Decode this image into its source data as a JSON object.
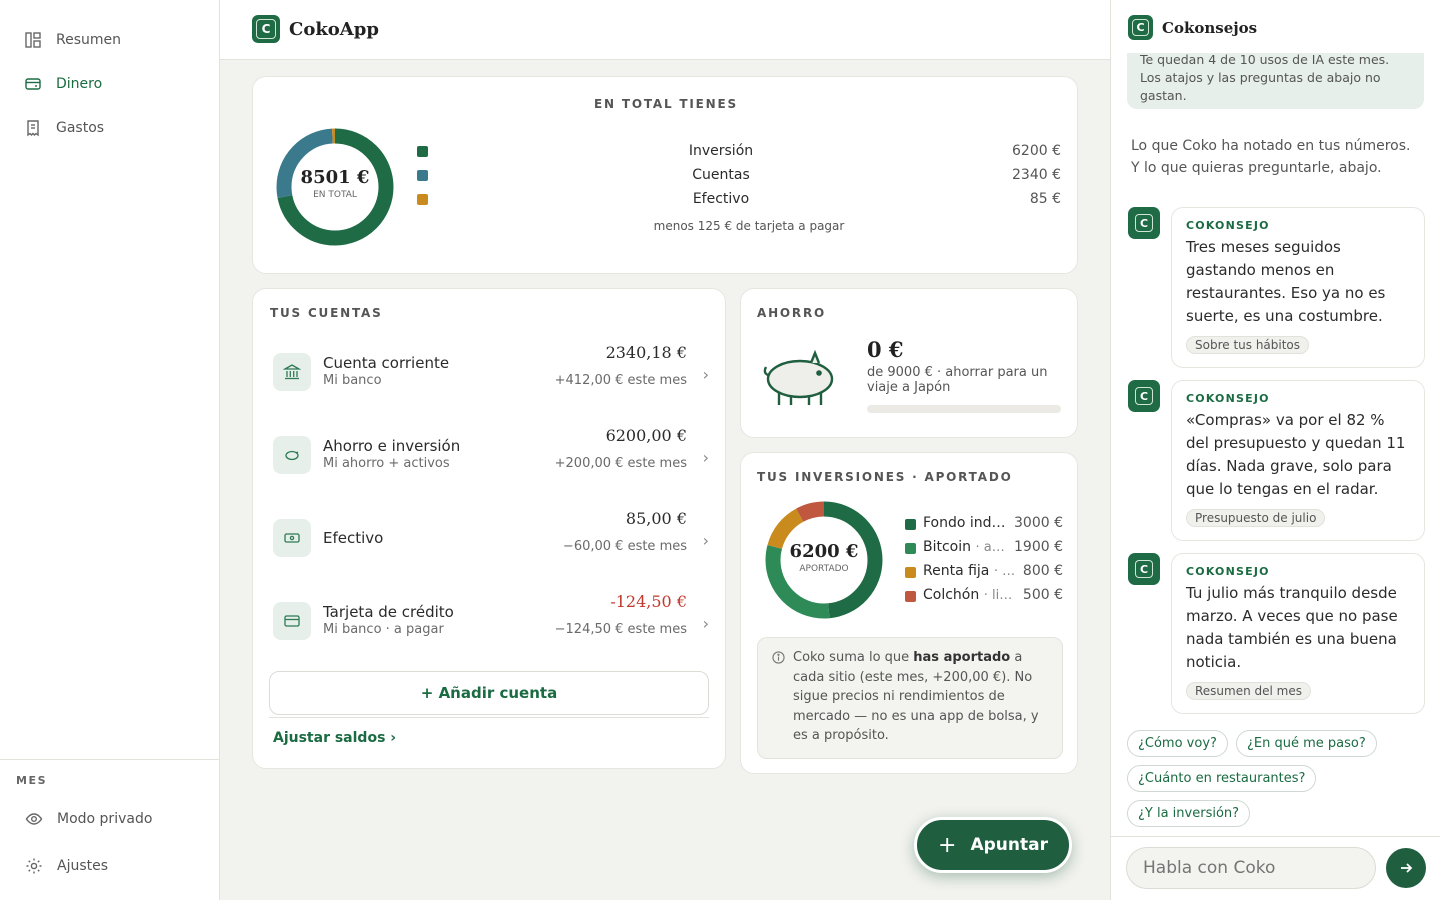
{
  "sidebar": {
    "nav": [
      {
        "label": "Resumen"
      },
      {
        "label": "Dinero"
      },
      {
        "label": "Gastos"
      }
    ],
    "section_label": "MES",
    "bottom": [
      {
        "label": "Modo privado"
      },
      {
        "label": "Ajustes"
      }
    ]
  },
  "header": {
    "app_name": "CokoApp"
  },
  "total": {
    "title": "EN TOTAL TIENES",
    "amount": "8501 €",
    "amount_sub": "EN TOTAL",
    "items": [
      {
        "label": "Inversión",
        "value": "6200 €",
        "color": "#1f6b45"
      },
      {
        "label": "Cuentas",
        "value": "2340 €",
        "color": "#3b7a8c"
      },
      {
        "label": "Efectivo",
        "value": "85 €",
        "color": "#c98b1e"
      }
    ],
    "note": "menos 125 € de tarjeta a pagar"
  },
  "accounts": {
    "title": "TUS CUENTAS",
    "items": [
      {
        "name": "Cuenta corriente",
        "sub": "Mi banco",
        "amount": "2340,18 €",
        "delta": "+412,00 € este mes",
        "icon": "bank-icon",
        "negative": false
      },
      {
        "name": "Ahorro e inversión",
        "sub": "Mi ahorro + activos",
        "amount": "6200,00 €",
        "delta": "+200,00 € este mes",
        "icon": "piggy-icon",
        "negative": false
      },
      {
        "name": "Efectivo",
        "sub": "",
        "amount": "85,00 €",
        "delta": "−60,00 € este mes",
        "icon": "cash-icon",
        "negative": false
      },
      {
        "name": "Tarjeta de crédito",
        "sub": "Mi banco · a pagar",
        "amount": "-124,50 €",
        "delta": "−124,50 € este mes",
        "icon": "card-icon",
        "negative": true
      }
    ],
    "add_label": "+ Añadir cuenta",
    "adjust_label": "Ajustar saldos ›"
  },
  "savings": {
    "title": "AHORRO",
    "amount": "0 €",
    "desc": "de 9000 € · ahorrar para un viaje a Japón",
    "progress": 0
  },
  "investments": {
    "title": "TUS INVERSIONES · APORTADO",
    "amount": "6200 €",
    "amount_sub": "APORTADO",
    "items": [
      {
        "label": "Fondo ind…",
        "value": "3000 €",
        "color": "#1f6b45",
        "amount": 3000
      },
      {
        "label": "Bitcoin",
        "extra": "· a…",
        "value": "1900 €",
        "color": "#2e8b57",
        "amount": 1900
      },
      {
        "label": "Renta fija",
        "extra": "· …",
        "value": "800 €",
        "color": "#c98b1e",
        "amount": 800
      },
      {
        "label": "Colchón",
        "extra": "· li…",
        "value": "500 €",
        "color": "#c0583f",
        "amount": 500
      }
    ],
    "info_pre": "Coko suma lo que ",
    "info_bold": "has aportado",
    "info_post": " a cada sitio (este mes, +200,00 €). No sigue precios ni rendimientos de mercado — no es una app de bolsa, y es a propósito."
  },
  "fab": {
    "label": "Apuntar"
  },
  "panel": {
    "title": "Cokonsejos",
    "banner": "Te quedan 4 de 10 usos de IA este mes. Los atajos y las preguntas de abajo no gastan.",
    "intro": "Lo que Coko ha notado en tus números. Y lo que quieras preguntarle, abajo.",
    "tips": [
      {
        "label": "COKONSEJO",
        "text": "Tres meses seguidos gastando menos en restaurantes. Eso ya no es suerte, es una costumbre.",
        "tag": "Sobre tus hábitos"
      },
      {
        "label": "COKONSEJO",
        "text": "«Compras» va por el 82 % del presupuesto y quedan 11 días. Nada grave, solo para que lo tengas en el radar.",
        "tag": "Presupuesto de julio"
      },
      {
        "label": "COKONSEJO",
        "text": "Tu julio más tranquilo desde marzo. A veces que no pase nada también es una buena noticia.",
        "tag": "Resumen del mes"
      }
    ],
    "chips": [
      "¿Cómo voy?",
      "¿En qué me paso?",
      "¿Cuánto en restaurantes?",
      "¿Y la inversión?"
    ],
    "input_placeholder": "Habla con Coko"
  },
  "chart_data": [
    {
      "type": "pie",
      "categories": [
        "Inversión",
        "Cuentas",
        "Efectivo"
      ],
      "values": [
        6200,
        2340,
        85
      ]
    },
    {
      "type": "pie",
      "categories": [
        "Fondo ind…",
        "Bitcoin",
        "Renta fija",
        "Colchón"
      ],
      "values": [
        3000,
        1900,
        800,
        500
      ]
    }
  ]
}
